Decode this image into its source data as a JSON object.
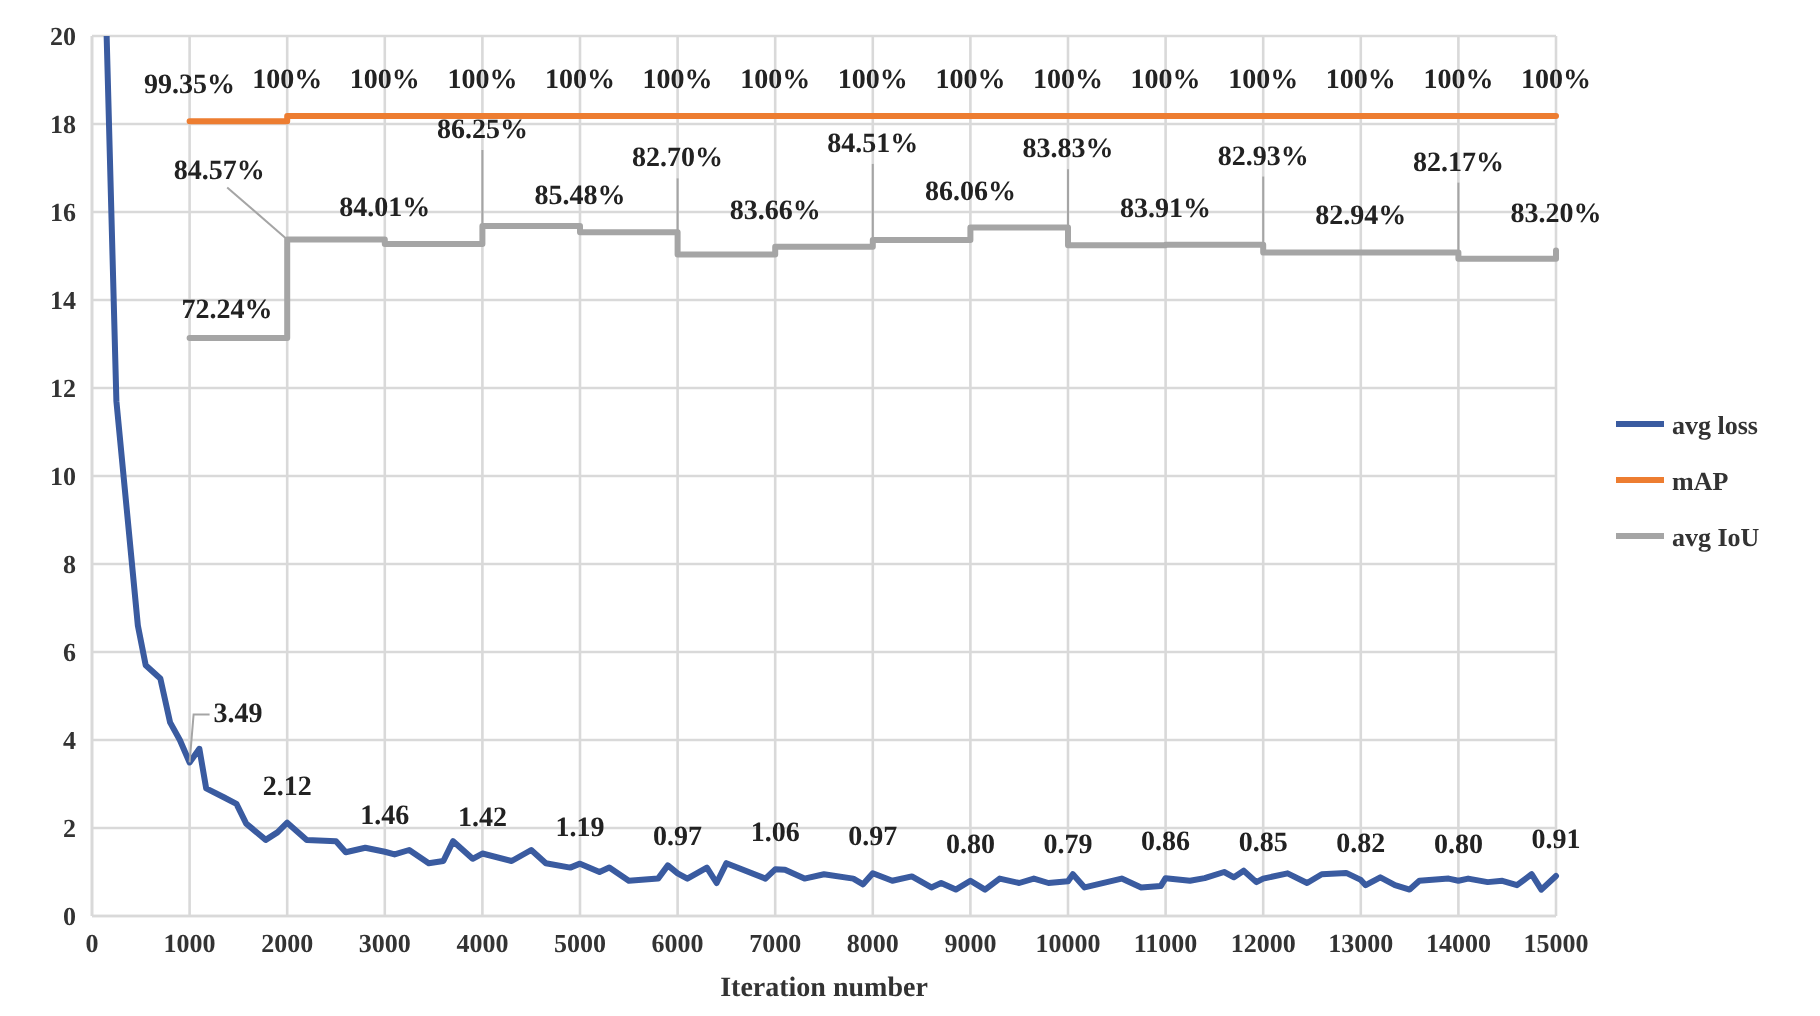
{
  "chart_data": {
    "type": "line",
    "xlabel": "Iteration number",
    "xlim": [
      0,
      15000
    ],
    "xticks": [
      0,
      1000,
      2000,
      3000,
      4000,
      5000,
      6000,
      7000,
      8000,
      9000,
      10000,
      11000,
      12000,
      13000,
      14000,
      15000
    ],
    "ylim": [
      0,
      20
    ],
    "yticks": [
      0,
      2,
      4,
      6,
      8,
      10,
      12,
      14,
      16,
      18,
      20
    ],
    "grid": true,
    "legend": "right",
    "y2lim": [
      0,
      110
    ],
    "series": [
      {
        "name": "avg loss",
        "color": "#3a5ba0",
        "x": [
          150,
          250,
          470,
          550,
          700,
          800,
          900,
          1000,
          1100,
          1170,
          1350,
          1480,
          1580,
          1780,
          1900,
          2000,
          2200,
          2500,
          2600,
          2800,
          3000,
          3100,
          3250,
          3450,
          3600,
          3700,
          3900,
          4000,
          4300,
          4500,
          4650,
          4900,
          5000,
          5200,
          5300,
          5500,
          5800,
          5900,
          6000,
          6100,
          6300,
          6400,
          6500,
          6900,
          7000,
          7100,
          7300,
          7500,
          7800,
          7900,
          8000,
          8200,
          8400,
          8600,
          8700,
          8850,
          9000,
          9150,
          9300,
          9500,
          9650,
          9800,
          10000,
          10050,
          10170,
          10550,
          10750,
          10950,
          11000,
          11250,
          11400,
          11600,
          11700,
          11800,
          11930,
          12000,
          12250,
          12450,
          12600,
          12850,
          13000,
          13050,
          13200,
          13350,
          13500,
          13600,
          13900,
          14000,
          14100,
          14300,
          14450,
          14600,
          14750,
          14850,
          15000
        ],
        "values": [
          20,
          11.7,
          6.6,
          5.7,
          5.4,
          4.4,
          4.0,
          3.49,
          3.8,
          2.9,
          2.7,
          2.55,
          2.1,
          1.73,
          1.9,
          2.12,
          1.73,
          1.7,
          1.45,
          1.55,
          1.46,
          1.4,
          1.5,
          1.2,
          1.25,
          1.7,
          1.3,
          1.42,
          1.25,
          1.5,
          1.2,
          1.1,
          1.19,
          1.0,
          1.1,
          0.8,
          0.85,
          1.15,
          0.97,
          0.85,
          1.1,
          0.75,
          1.2,
          0.85,
          1.06,
          1.05,
          0.85,
          0.95,
          0.85,
          0.72,
          0.97,
          0.8,
          0.9,
          0.65,
          0.75,
          0.6,
          0.8,
          0.6,
          0.85,
          0.75,
          0.85,
          0.75,
          0.79,
          0.95,
          0.65,
          0.85,
          0.65,
          0.68,
          0.86,
          0.8,
          0.86,
          1.0,
          0.88,
          1.03,
          0.77,
          0.85,
          0.97,
          0.75,
          0.95,
          0.98,
          0.82,
          0.7,
          0.88,
          0.7,
          0.6,
          0.8,
          0.85,
          0.8,
          0.85,
          0.77,
          0.8,
          0.7,
          0.95,
          0.6,
          0.91
        ],
        "value_labels": [
          null,
          null,
          null,
          null,
          null,
          null,
          null,
          "3.49",
          null,
          null,
          null,
          null,
          null,
          null,
          null,
          "2.12",
          null,
          null,
          null,
          null,
          "1.46",
          null,
          null,
          null,
          null,
          null,
          null,
          "1.42",
          null,
          null,
          null,
          null,
          "1.19",
          null,
          null,
          null,
          null,
          null,
          "0.97",
          null,
          null,
          null,
          null,
          null,
          "1.06",
          null,
          null,
          null,
          null,
          null,
          "0.97",
          null,
          null,
          null,
          null,
          null,
          "0.80",
          null,
          null,
          null,
          null,
          null,
          "0.79",
          null,
          null,
          null,
          null,
          null,
          "0.86",
          null,
          null,
          null,
          null,
          null,
          null,
          "0.85",
          null,
          null,
          null,
          null,
          "0.82",
          null,
          null,
          null,
          null,
          null,
          null,
          "0.80",
          null,
          null,
          null,
          null,
          null,
          null,
          "0.91"
        ]
      },
      {
        "name": "mAP",
        "type": "step",
        "axis": "y2",
        "color": "#ed7d31",
        "x": [
          1000,
          2000,
          3000,
          4000,
          5000,
          6000,
          7000,
          8000,
          9000,
          10000,
          11000,
          12000,
          13000,
          14000,
          15000
        ],
        "values": [
          99.35,
          100,
          100,
          100,
          100,
          100,
          100,
          100,
          100,
          100,
          100,
          100,
          100,
          100,
          100
        ],
        "value_labels": [
          "99.35%",
          "100%",
          "100%",
          "100%",
          "100%",
          "100%",
          "100%",
          "100%",
          "100%",
          "100%",
          "100%",
          "100%",
          "100%",
          "100%",
          "100%"
        ]
      },
      {
        "name": "avg IoU",
        "type": "step",
        "axis": "y2",
        "color": "#a5a5a5",
        "x": [
          1000,
          2000,
          3000,
          4000,
          5000,
          6000,
          7000,
          8000,
          9000,
          10000,
          11000,
          12000,
          13000,
          14000,
          15000
        ],
        "values": [
          72.24,
          84.57,
          84.01,
          86.25,
          85.48,
          82.7,
          83.66,
          84.51,
          86.06,
          83.83,
          83.91,
          82.93,
          82.94,
          82.17,
          83.2
        ],
        "value_labels": [
          "72.24%",
          "84.57%",
          "84.01%",
          "86.25%",
          "85.48%",
          "82.70%",
          "83.66%",
          "84.51%",
          "86.06%",
          "83.83%",
          "83.91%",
          "82.93%",
          "82.94%",
          "82.17%",
          "83.20%"
        ]
      }
    ]
  }
}
